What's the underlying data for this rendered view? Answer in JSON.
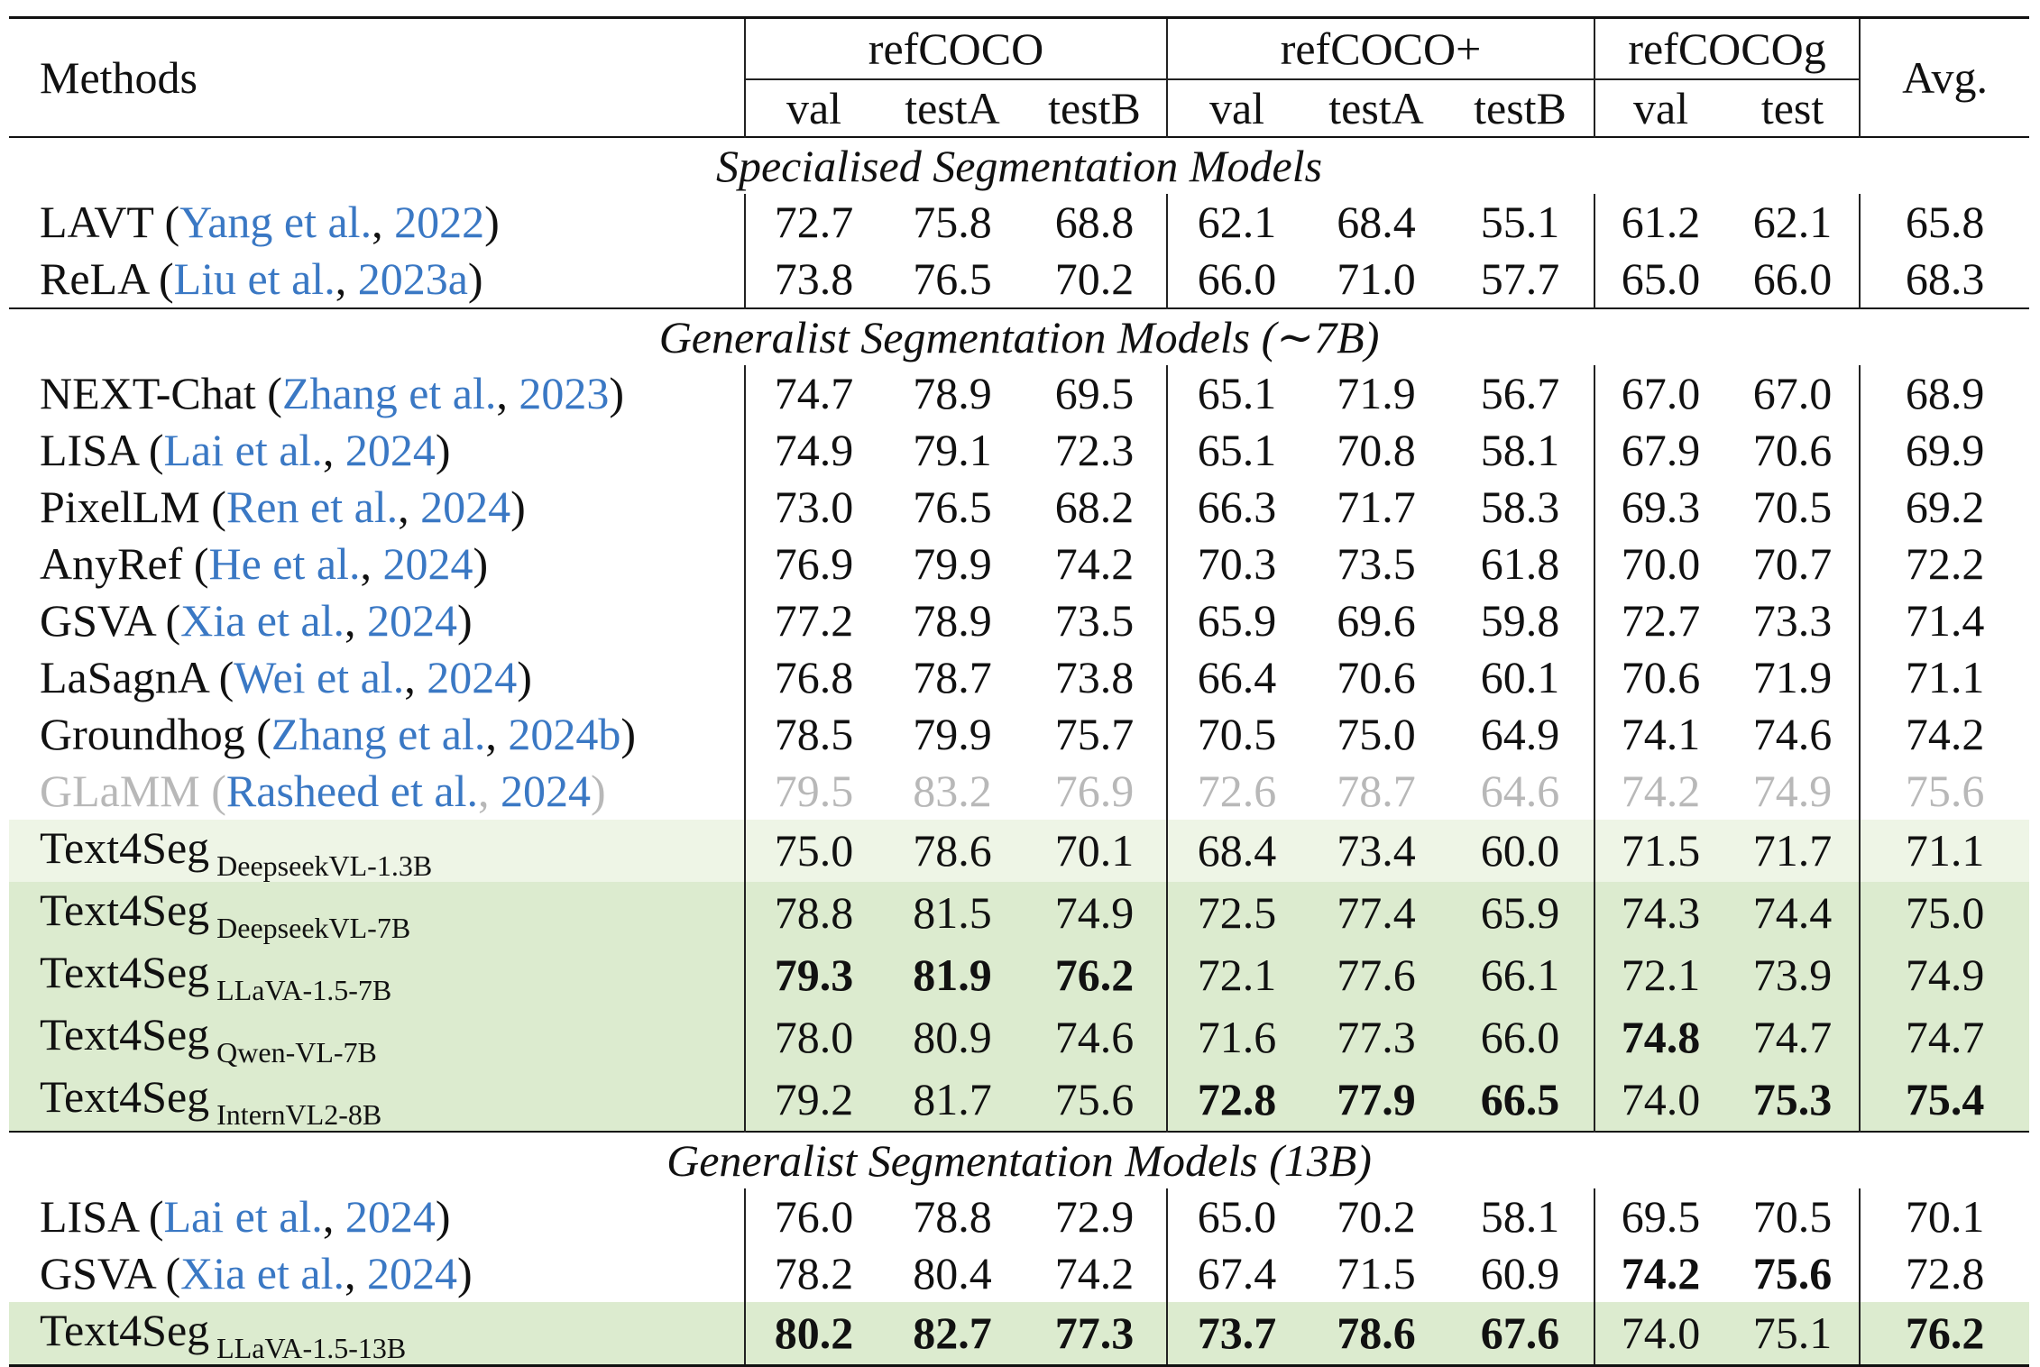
{
  "header": {
    "methods": "Methods",
    "avg": "Avg.",
    "groups": [
      {
        "name": "refCOCO",
        "splits": [
          "val",
          "testA",
          "testB"
        ]
      },
      {
        "name": "refCOCO+",
        "splits": [
          "val",
          "testA",
          "testB"
        ]
      },
      {
        "name": "refCOCOg",
        "splits": [
          "val",
          "test"
        ]
      }
    ]
  },
  "sections": [
    {
      "title": "Specialised Segmentation Models",
      "rows": [
        {
          "name": "LAVT",
          "cite_author": "Yang et al.",
          "cite_year": "2022",
          "values": [
            "72.7",
            "75.8",
            "68.8",
            "62.1",
            "68.4",
            "55.1",
            "61.2",
            "62.1",
            "65.8"
          ]
        },
        {
          "name": "ReLA",
          "cite_author": "Liu et al.",
          "cite_year": "2023a",
          "values": [
            "73.8",
            "76.5",
            "70.2",
            "66.0",
            "71.0",
            "57.7",
            "65.0",
            "66.0",
            "68.3"
          ]
        }
      ]
    },
    {
      "title": "Generalist Segmentation Models (∼7B)",
      "rows": [
        {
          "name": "NEXT-Chat",
          "cite_author": "Zhang et al.",
          "cite_year": "2023",
          "values": [
            "74.7",
            "78.9",
            "69.5",
            "65.1",
            "71.9",
            "56.7",
            "67.0",
            "67.0",
            "68.9"
          ]
        },
        {
          "name": "LISA",
          "cite_author": "Lai et al.",
          "cite_year": "2024",
          "values": [
            "74.9",
            "79.1",
            "72.3",
            "65.1",
            "70.8",
            "58.1",
            "67.9",
            "70.6",
            "69.9"
          ]
        },
        {
          "name": "PixelLM",
          "cite_author": "Ren et al.",
          "cite_year": "2024",
          "values": [
            "73.0",
            "76.5",
            "68.2",
            "66.3",
            "71.7",
            "58.3",
            "69.3",
            "70.5",
            "69.2"
          ]
        },
        {
          "name": "AnyRef",
          "cite_author": "He et al.",
          "cite_year": "2024",
          "values": [
            "76.9",
            "79.9",
            "74.2",
            "70.3",
            "73.5",
            "61.8",
            "70.0",
            "70.7",
            "72.2"
          ]
        },
        {
          "name": "GSVA",
          "cite_author": "Xia et al.",
          "cite_year": "2024",
          "values": [
            "77.2",
            "78.9",
            "73.5",
            "65.9",
            "69.6",
            "59.8",
            "72.7",
            "73.3",
            "71.4"
          ]
        },
        {
          "name": "LaSagnA",
          "cite_author": "Wei et al.",
          "cite_year": "2024",
          "values": [
            "76.8",
            "78.7",
            "73.8",
            "66.4",
            "70.6",
            "60.1",
            "70.6",
            "71.9",
            "71.1"
          ]
        },
        {
          "name": "Groundhog",
          "cite_author": "Zhang et al.",
          "cite_year": "2024b",
          "values": [
            "78.5",
            "79.9",
            "75.7",
            "70.5",
            "75.0",
            "64.9",
            "74.1",
            "74.6",
            "74.2"
          ]
        },
        {
          "name": "GLaMM",
          "cite_author": "Rasheed et al.",
          "cite_year": "2024",
          "values": [
            "79.5",
            "83.2",
            "76.9",
            "72.6",
            "78.7",
            "64.6",
            "74.2",
            "74.9",
            "75.6"
          ],
          "greyed": true
        },
        {
          "name": "Text4Seg",
          "sub": "DeepseekVL-1.3B",
          "values": [
            "75.0",
            "78.6",
            "70.1",
            "68.4",
            "73.4",
            "60.0",
            "71.5",
            "71.7",
            "71.1"
          ],
          "highlight": "light"
        },
        {
          "name": "Text4Seg",
          "sub": "DeepseekVL-7B",
          "values": [
            "78.8",
            "81.5",
            "74.9",
            "72.5",
            "77.4",
            "65.9",
            "74.3",
            "74.4",
            "75.0"
          ],
          "highlight": "dark"
        },
        {
          "name": "Text4Seg",
          "sub": "LLaVA-1.5-7B",
          "values": [
            "79.3",
            "81.9",
            "76.2",
            "72.1",
            "77.6",
            "66.1",
            "72.1",
            "73.9",
            "74.9"
          ],
          "highlight": "dark",
          "bold": [
            0,
            1,
            2
          ]
        },
        {
          "name": "Text4Seg",
          "sub": "Qwen-VL-7B",
          "values": [
            "78.0",
            "80.9",
            "74.6",
            "71.6",
            "77.3",
            "66.0",
            "74.8",
            "74.7",
            "74.7"
          ],
          "highlight": "dark",
          "bold": [
            6
          ]
        },
        {
          "name": "Text4Seg",
          "sub": "InternVL2-8B",
          "values": [
            "79.2",
            "81.7",
            "75.6",
            "72.8",
            "77.9",
            "66.5",
            "74.0",
            "75.3",
            "75.4"
          ],
          "highlight": "dark",
          "bold": [
            3,
            4,
            5,
            7,
            8
          ]
        }
      ]
    },
    {
      "title": "Generalist Segmentation Models (13B)",
      "rows": [
        {
          "name": "LISA",
          "cite_author": "Lai et al.",
          "cite_year": "2024",
          "values": [
            "76.0",
            "78.8",
            "72.9",
            "65.0",
            "70.2",
            "58.1",
            "69.5",
            "70.5",
            "70.1"
          ]
        },
        {
          "name": "GSVA",
          "cite_author": "Xia et al.",
          "cite_year": "2024",
          "values": [
            "78.2",
            "80.4",
            "74.2",
            "67.4",
            "71.5",
            "60.9",
            "74.2",
            "75.6",
            "72.8"
          ],
          "bold": [
            6,
            7
          ]
        },
        {
          "name": "Text4Seg",
          "sub": "LLaVA-1.5-13B",
          "values": [
            "80.2",
            "82.7",
            "77.3",
            "73.7",
            "78.6",
            "67.6",
            "74.0",
            "75.1",
            "76.2"
          ],
          "highlight": "dark",
          "bold": [
            0,
            1,
            2,
            3,
            4,
            5,
            8
          ]
        }
      ]
    }
  ],
  "colors": {
    "citation": "#3a78c4",
    "highlight_light": "#eef5e6",
    "highlight_dark": "#dcebcf",
    "greyed_text": "#b8b8b8"
  }
}
